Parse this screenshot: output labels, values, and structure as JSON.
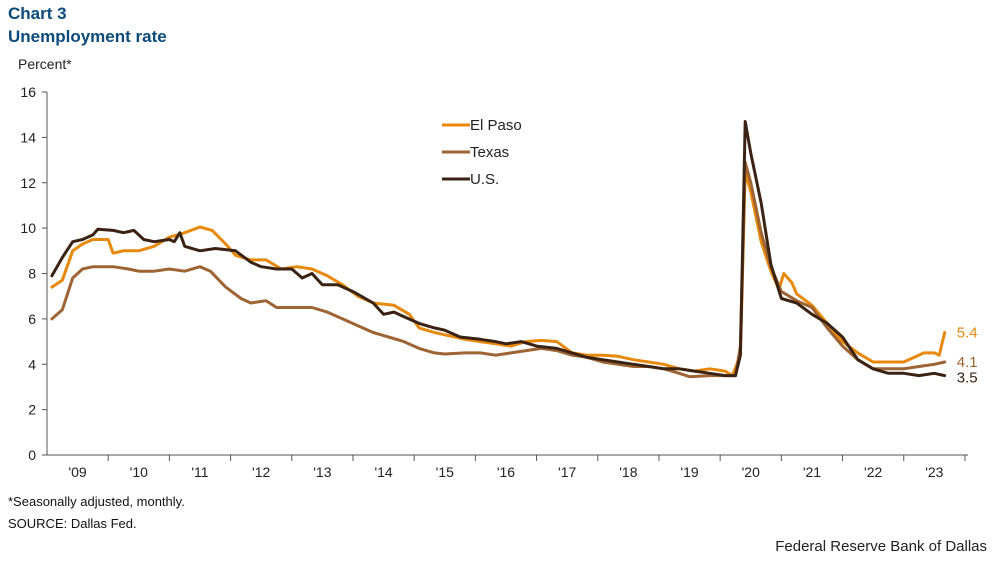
{
  "header": {
    "chart_label": "Chart 3",
    "title": "Unemployment rate"
  },
  "footer": {
    "footnote": "*Seasonally adjusted, monthly.",
    "source": "SOURCE: Dallas Fed.",
    "credit": "Federal Reserve Bank of Dallas"
  },
  "chart_data": {
    "type": "line",
    "title": "Unemployment rate",
    "ylabel": "Percent*",
    "xlabel": "",
    "ylim": [
      0,
      16
    ],
    "yticks": [
      0,
      2,
      4,
      6,
      8,
      10,
      12,
      14,
      16
    ],
    "xlim": [
      2008.5,
      2023.55
    ],
    "xticks": [
      {
        "label": "'09",
        "value": 2009.0
      },
      {
        "label": "'10",
        "value": 2010.0
      },
      {
        "label": "'11",
        "value": 2011.0
      },
      {
        "label": "'12",
        "value": 2012.0
      },
      {
        "label": "'13",
        "value": 2013.0
      },
      {
        "label": "'14",
        "value": 2014.0
      },
      {
        "label": "'15",
        "value": 2015.0
      },
      {
        "label": "'16",
        "value": 2016.0
      },
      {
        "label": "'17",
        "value": 2017.0
      },
      {
        "label": "'18",
        "value": 2018.0
      },
      {
        "label": "'19",
        "value": 2019.0
      },
      {
        "label": "'20",
        "value": 2020.0
      },
      {
        "label": "'21",
        "value": 2021.0
      },
      {
        "label": "'22",
        "value": 2022.0
      },
      {
        "label": "'23",
        "value": 2023.0
      }
    ],
    "grid": false,
    "legend_position": "top-center",
    "series": [
      {
        "name": "El Paso",
        "color": "#e8890c",
        "end_label": "5.4",
        "points": [
          [
            2008.58,
            7.4
          ],
          [
            2008.75,
            7.7
          ],
          [
            2008.92,
            9.0
          ],
          [
            2009.08,
            9.3
          ],
          [
            2009.25,
            9.5
          ],
          [
            2009.5,
            9.5
          ],
          [
            2009.58,
            8.9
          ],
          [
            2009.75,
            9.0
          ],
          [
            2010.0,
            9.0
          ],
          [
            2010.25,
            9.2
          ],
          [
            2010.5,
            9.6
          ],
          [
            2010.75,
            9.8
          ],
          [
            2011.0,
            10.05
          ],
          [
            2011.2,
            9.9
          ],
          [
            2011.42,
            9.3
          ],
          [
            2011.58,
            8.8
          ],
          [
            2011.83,
            8.6
          ],
          [
            2012.08,
            8.6
          ],
          [
            2012.33,
            8.2
          ],
          [
            2012.58,
            8.3
          ],
          [
            2012.83,
            8.2
          ],
          [
            2013.08,
            7.9
          ],
          [
            2013.33,
            7.5
          ],
          [
            2013.58,
            7.0
          ],
          [
            2013.83,
            6.7
          ],
          [
            2014.17,
            6.6
          ],
          [
            2014.42,
            6.2
          ],
          [
            2014.58,
            5.6
          ],
          [
            2014.83,
            5.4
          ],
          [
            2015.0,
            5.3
          ],
          [
            2015.33,
            5.1
          ],
          [
            2015.58,
            5.0
          ],
          [
            2015.83,
            4.9
          ],
          [
            2016.08,
            4.8
          ],
          [
            2016.33,
            5.0
          ],
          [
            2016.58,
            5.05
          ],
          [
            2016.83,
            5.0
          ],
          [
            2017.08,
            4.5
          ],
          [
            2017.33,
            4.4
          ],
          [
            2017.58,
            4.4
          ],
          [
            2017.83,
            4.35
          ],
          [
            2018.08,
            4.2
          ],
          [
            2018.33,
            4.1
          ],
          [
            2018.58,
            4.0
          ],
          [
            2018.83,
            3.8
          ],
          [
            2019.08,
            3.7
          ],
          [
            2019.33,
            3.8
          ],
          [
            2019.58,
            3.7
          ],
          [
            2019.7,
            3.5
          ],
          [
            2019.83,
            4.4
          ],
          [
            2019.91,
            12.5
          ],
          [
            2020.0,
            11.6
          ],
          [
            2020.17,
            9.4
          ],
          [
            2020.33,
            8.1
          ],
          [
            2020.46,
            7.3
          ],
          [
            2020.54,
            8.0
          ],
          [
            2020.67,
            7.6
          ],
          [
            2020.75,
            7.1
          ],
          [
            2021.0,
            6.6
          ],
          [
            2021.25,
            5.8
          ],
          [
            2021.5,
            5.0
          ],
          [
            2021.75,
            4.5
          ],
          [
            2022.0,
            4.1
          ],
          [
            2022.25,
            4.1
          ],
          [
            2022.5,
            4.1
          ],
          [
            2022.67,
            4.3
          ],
          [
            2022.83,
            4.5
          ],
          [
            2023.0,
            4.5
          ],
          [
            2023.08,
            4.4
          ],
          [
            2023.17,
            5.4
          ]
        ]
      },
      {
        "name": "Texas",
        "color": "#9e6433",
        "end_label": "4.1",
        "points": [
          [
            2008.58,
            6.0
          ],
          [
            2008.75,
            6.4
          ],
          [
            2008.92,
            7.8
          ],
          [
            2009.08,
            8.2
          ],
          [
            2009.25,
            8.3
          ],
          [
            2009.58,
            8.3
          ],
          [
            2009.83,
            8.2
          ],
          [
            2010.0,
            8.1
          ],
          [
            2010.25,
            8.1
          ],
          [
            2010.5,
            8.2
          ],
          [
            2010.75,
            8.1
          ],
          [
            2011.0,
            8.3
          ],
          [
            2011.17,
            8.1
          ],
          [
            2011.42,
            7.4
          ],
          [
            2011.67,
            6.9
          ],
          [
            2011.83,
            6.7
          ],
          [
            2012.08,
            6.8
          ],
          [
            2012.25,
            6.5
          ],
          [
            2012.58,
            6.5
          ],
          [
            2012.83,
            6.5
          ],
          [
            2013.08,
            6.3
          ],
          [
            2013.33,
            6.0
          ],
          [
            2013.58,
            5.7
          ],
          [
            2013.83,
            5.4
          ],
          [
            2014.08,
            5.2
          ],
          [
            2014.33,
            5.0
          ],
          [
            2014.58,
            4.7
          ],
          [
            2014.83,
            4.5
          ],
          [
            2015.0,
            4.45
          ],
          [
            2015.33,
            4.5
          ],
          [
            2015.58,
            4.5
          ],
          [
            2015.83,
            4.4
          ],
          [
            2016.08,
            4.5
          ],
          [
            2016.33,
            4.6
          ],
          [
            2016.58,
            4.7
          ],
          [
            2016.83,
            4.6
          ],
          [
            2017.08,
            4.4
          ],
          [
            2017.33,
            4.3
          ],
          [
            2017.58,
            4.1
          ],
          [
            2017.83,
            4.0
          ],
          [
            2018.08,
            3.9
          ],
          [
            2018.33,
            3.9
          ],
          [
            2018.58,
            3.8
          ],
          [
            2018.83,
            3.6
          ],
          [
            2019.0,
            3.45
          ],
          [
            2019.33,
            3.5
          ],
          [
            2019.58,
            3.5
          ],
          [
            2019.75,
            3.5
          ],
          [
            2019.83,
            4.8
          ],
          [
            2019.91,
            12.9
          ],
          [
            2020.0,
            12.0
          ],
          [
            2020.17,
            9.8
          ],
          [
            2020.33,
            8.3
          ],
          [
            2020.5,
            7.2
          ],
          [
            2020.75,
            6.8
          ],
          [
            2021.0,
            6.5
          ],
          [
            2021.25,
            5.6
          ],
          [
            2021.5,
            4.8
          ],
          [
            2021.75,
            4.2
          ],
          [
            2022.0,
            3.8
          ],
          [
            2022.25,
            3.8
          ],
          [
            2022.5,
            3.8
          ],
          [
            2022.75,
            3.9
          ],
          [
            2023.0,
            4.0
          ],
          [
            2023.17,
            4.1
          ]
        ]
      },
      {
        "name": "U.S.",
        "color": "#3b2313",
        "end_label": "3.5",
        "points": [
          [
            2008.58,
            7.9
          ],
          [
            2008.75,
            8.7
          ],
          [
            2008.92,
            9.4
          ],
          [
            2009.08,
            9.5
          ],
          [
            2009.25,
            9.7
          ],
          [
            2009.33,
            9.95
          ],
          [
            2009.58,
            9.9
          ],
          [
            2009.75,
            9.8
          ],
          [
            2009.92,
            9.9
          ],
          [
            2010.08,
            9.5
          ],
          [
            2010.25,
            9.4
          ],
          [
            2010.5,
            9.5
          ],
          [
            2010.58,
            9.4
          ],
          [
            2010.67,
            9.8
          ],
          [
            2010.75,
            9.2
          ],
          [
            2011.0,
            9.0
          ],
          [
            2011.25,
            9.1
          ],
          [
            2011.58,
            9.0
          ],
          [
            2011.83,
            8.5
          ],
          [
            2012.0,
            8.3
          ],
          [
            2012.25,
            8.2
          ],
          [
            2012.5,
            8.2
          ],
          [
            2012.67,
            7.8
          ],
          [
            2012.83,
            8.0
          ],
          [
            2013.0,
            7.5
          ],
          [
            2013.25,
            7.5
          ],
          [
            2013.5,
            7.2
          ],
          [
            2013.83,
            6.7
          ],
          [
            2014.0,
            6.2
          ],
          [
            2014.17,
            6.3
          ],
          [
            2014.33,
            6.1
          ],
          [
            2014.58,
            5.8
          ],
          [
            2014.83,
            5.6
          ],
          [
            2015.0,
            5.5
          ],
          [
            2015.25,
            5.2
          ],
          [
            2015.58,
            5.1
          ],
          [
            2015.83,
            5.0
          ],
          [
            2016.0,
            4.9
          ],
          [
            2016.25,
            5.0
          ],
          [
            2016.5,
            4.8
          ],
          [
            2016.83,
            4.7
          ],
          [
            2017.08,
            4.5
          ],
          [
            2017.33,
            4.3
          ],
          [
            2017.58,
            4.2
          ],
          [
            2017.83,
            4.1
          ],
          [
            2018.08,
            4.0
          ],
          [
            2018.33,
            3.9
          ],
          [
            2018.58,
            3.8
          ],
          [
            2018.83,
            3.8
          ],
          [
            2019.08,
            3.7
          ],
          [
            2019.33,
            3.6
          ],
          [
            2019.58,
            3.5
          ],
          [
            2019.75,
            3.5
          ],
          [
            2019.83,
            4.4
          ],
          [
            2019.91,
            14.7
          ],
          [
            2020.0,
            13.3
          ],
          [
            2020.17,
            11.1
          ],
          [
            2020.33,
            8.4
          ],
          [
            2020.5,
            6.9
          ],
          [
            2020.75,
            6.7
          ],
          [
            2021.0,
            6.2
          ],
          [
            2021.25,
            5.8
          ],
          [
            2021.5,
            5.2
          ],
          [
            2021.75,
            4.2
          ],
          [
            2022.0,
            3.8
          ],
          [
            2022.25,
            3.6
          ],
          [
            2022.5,
            3.6
          ],
          [
            2022.75,
            3.5
          ],
          [
            2023.0,
            3.6
          ],
          [
            2023.17,
            3.5
          ]
        ]
      }
    ]
  }
}
